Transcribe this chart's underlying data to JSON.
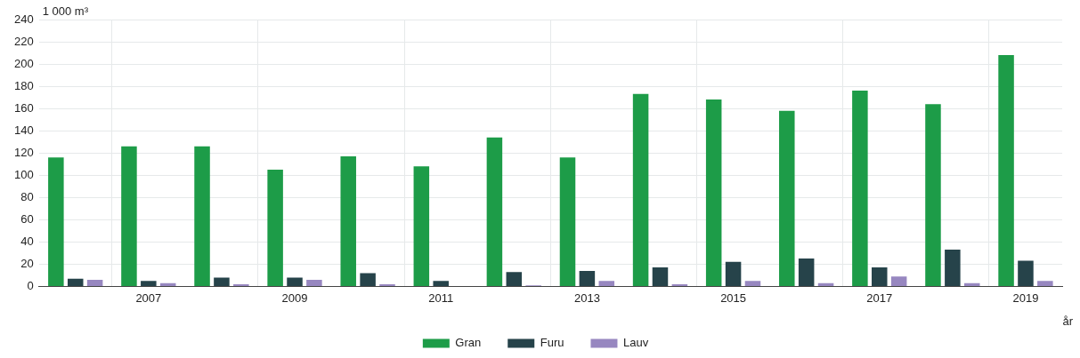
{
  "chart_data": {
    "type": "bar",
    "ylabel": "1 000 m³",
    "xlabel": "år",
    "categories": [
      null,
      "2007",
      null,
      "2009",
      null,
      "2011",
      null,
      "2013",
      null,
      "2015",
      null,
      "2017",
      null,
      "2019"
    ],
    "series": [
      {
        "name": "Gran",
        "color": "#1d9c48",
        "values": [
          116,
          126,
          126,
          105,
          117,
          108,
          134,
          116,
          173,
          168,
          158,
          176,
          164,
          208
        ]
      },
      {
        "name": "Furu",
        "color": "#26434a",
        "values": [
          7,
          5,
          8,
          8,
          12,
          5,
          13,
          14,
          17,
          22,
          25,
          17,
          33,
          23
        ]
      },
      {
        "name": "Lauv",
        "color": "#9787c0",
        "values": [
          6,
          3,
          2,
          6,
          2,
          0,
          1,
          5,
          2,
          5,
          3,
          9,
          3,
          5
        ]
      }
    ],
    "ylim": [
      0,
      240
    ],
    "yticks": [
      0,
      20,
      40,
      60,
      80,
      100,
      120,
      140,
      160,
      180,
      200,
      220,
      240
    ],
    "grid": true,
    "legend": "bottom"
  }
}
